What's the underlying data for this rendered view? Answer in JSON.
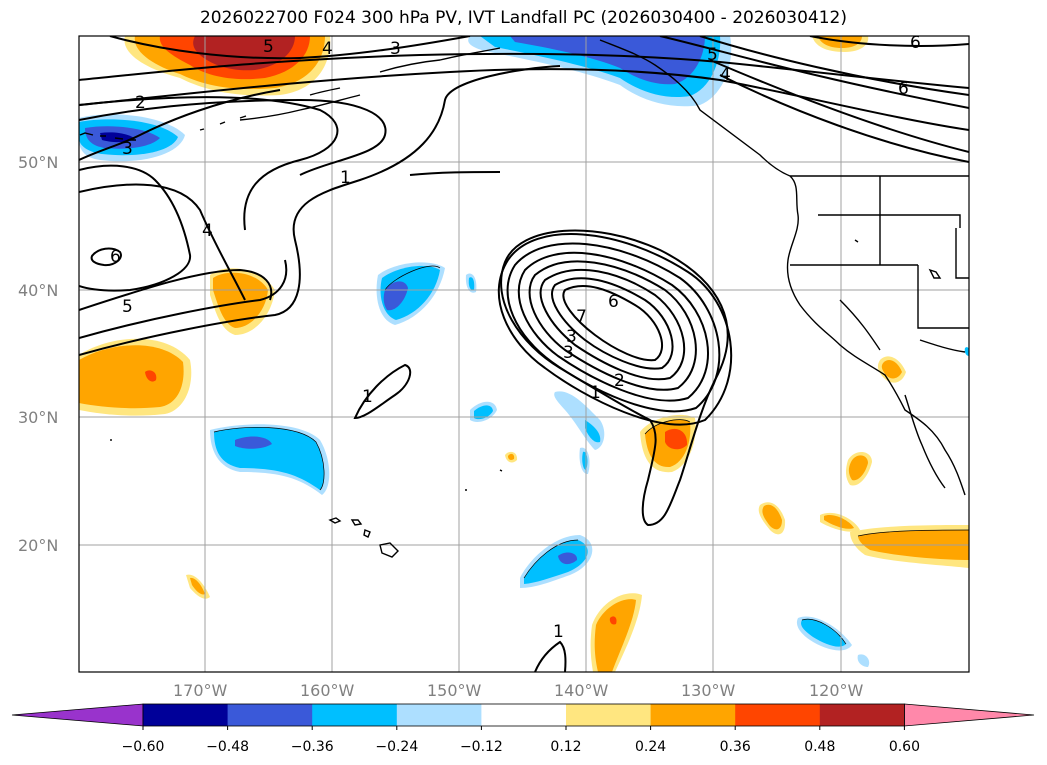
{
  "title": "2026022700 F024 300 hPa PV, IVT Landfall PC (2026030400 - 2026030412)",
  "lat_labels": [
    "50°N",
    "40°N",
    "30°N",
    "20°N"
  ],
  "lon_labels": [
    "170°W",
    "160°W",
    "150°W",
    "140°W",
    "130°W",
    "120°W"
  ],
  "contour_labels": [
    "5",
    "4",
    "3",
    "2",
    "3",
    "1",
    "4",
    "6",
    "5",
    "1",
    "6",
    "7",
    "3",
    "3",
    "1",
    "2",
    "1",
    "5",
    "4",
    "6",
    "6"
  ],
  "colorbar": {
    "ticks": [
      "−0.60",
      "−0.48",
      "−0.36",
      "−0.24",
      "−0.12",
      "0.12",
      "0.24",
      "0.36",
      "0.48",
      "0.60"
    ],
    "colors": [
      "#9933cc",
      "#000099",
      "#3a59d9",
      "#00bfff",
      "#addfff",
      "#ffffff",
      "#ffe680",
      "#ffa500",
      "#ff4500",
      "#b22222",
      "#ff88aa"
    ]
  },
  "colors": {
    "land_line": "#000000",
    "grid": "#a0a0a0",
    "contour": "#000000"
  }
}
